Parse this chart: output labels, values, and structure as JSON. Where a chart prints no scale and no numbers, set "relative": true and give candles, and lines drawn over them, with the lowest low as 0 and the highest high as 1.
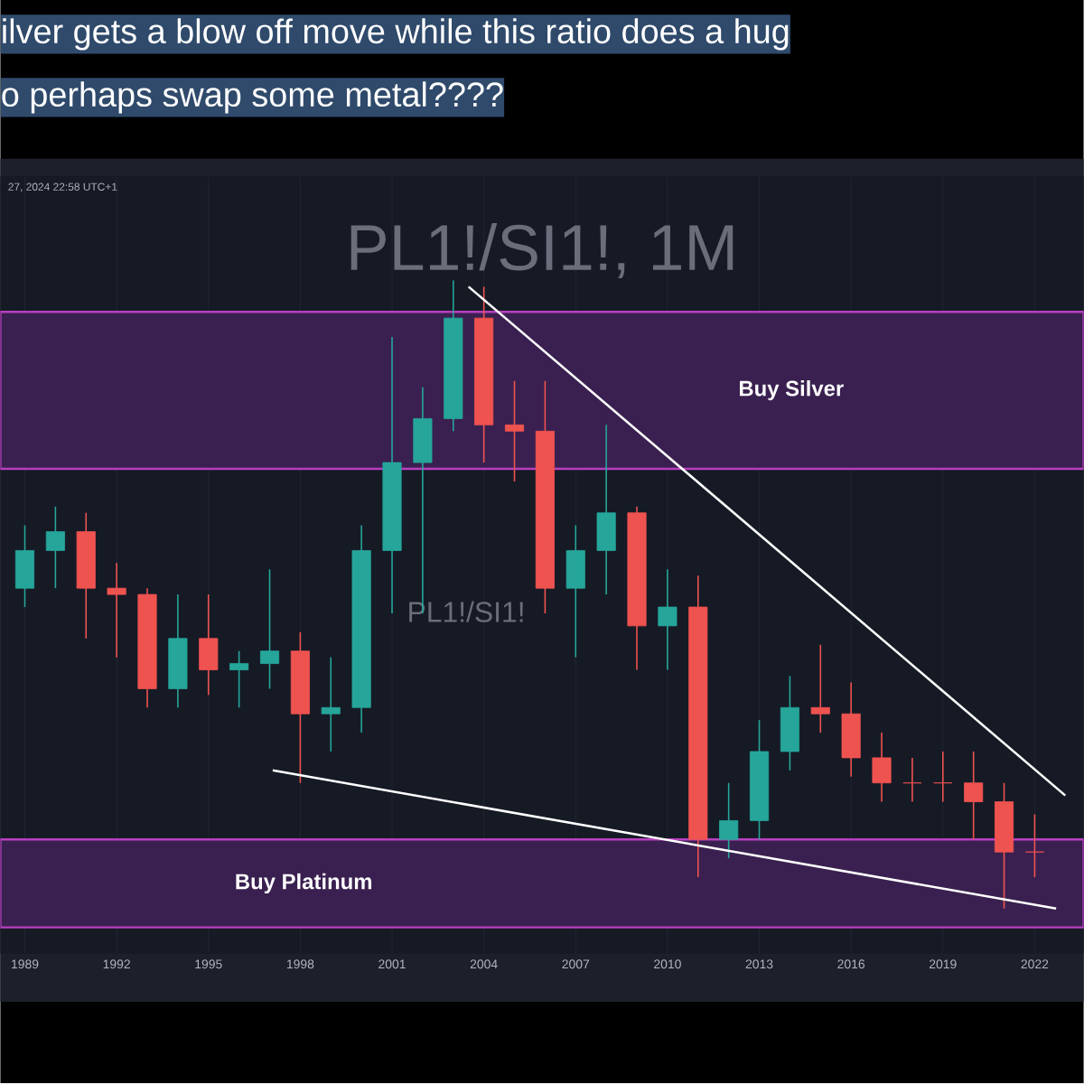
{
  "chart_data": {
    "type": "candlestick",
    "title": "ilver gets a blow off move while this ratio does a hug",
    "subtitle": "o perhaps swap some metal????",
    "annotations": [
      "27, 2024 22:58 UTC+1",
      "PL1!/SI1!, 1M",
      "PL1!/SI1!"
    ],
    "relative": true,
    "x": [
      1989,
      1990,
      1991,
      1992,
      1993,
      1994,
      1995,
      1996,
      1997,
      1998,
      1999,
      2000,
      2001,
      2002,
      2003,
      2004,
      2005,
      2006,
      2007,
      2008,
      2009,
      2010,
      2011,
      2012,
      2013,
      2014,
      2015,
      2016,
      2017,
      2018,
      2019,
      2020,
      2021,
      2022
    ],
    "ohlc": [
      [
        0.51,
        0.61,
        0.48,
        0.57
      ],
      [
        0.57,
        0.64,
        0.51,
        0.6
      ],
      [
        0.6,
        0.63,
        0.43,
        0.51
      ],
      [
        0.51,
        0.55,
        0.4,
        0.5
      ],
      [
        0.5,
        0.51,
        0.32,
        0.35
      ],
      [
        0.35,
        0.5,
        0.32,
        0.43
      ],
      [
        0.43,
        0.5,
        0.34,
        0.38
      ],
      [
        0.38,
        0.41,
        0.32,
        0.39
      ],
      [
        0.39,
        0.54,
        0.35,
        0.41
      ],
      [
        0.41,
        0.44,
        0.2,
        0.31
      ],
      [
        0.31,
        0.4,
        0.25,
        0.32
      ],
      [
        0.32,
        0.61,
        0.28,
        0.57
      ],
      [
        0.57,
        0.91,
        0.47,
        0.71
      ],
      [
        0.71,
        0.83,
        0.47,
        0.78
      ],
      [
        0.78,
        1.0,
        0.76,
        0.94
      ],
      [
        0.94,
        0.99,
        0.71,
        0.77
      ],
      [
        0.77,
        0.84,
        0.68,
        0.76
      ],
      [
        0.76,
        0.84,
        0.47,
        0.51
      ],
      [
        0.51,
        0.61,
        0.4,
        0.57
      ],
      [
        0.57,
        0.77,
        0.5,
        0.63
      ],
      [
        0.63,
        0.64,
        0.38,
        0.45
      ],
      [
        0.45,
        0.54,
        0.38,
        0.48
      ],
      [
        0.48,
        0.53,
        0.05,
        0.11
      ],
      [
        0.11,
        0.2,
        0.08,
        0.14
      ],
      [
        0.14,
        0.3,
        0.11,
        0.25
      ],
      [
        0.25,
        0.37,
        0.22,
        0.32
      ],
      [
        0.32,
        0.42,
        0.28,
        0.31
      ],
      [
        0.31,
        0.36,
        0.21,
        0.24
      ],
      [
        0.24,
        0.28,
        0.17,
        0.2
      ],
      [
        0.2,
        0.24,
        0.17,
        0.2
      ],
      [
        0.2,
        0.25,
        0.17,
        0.2
      ],
      [
        0.2,
        0.25,
        0.11,
        0.17
      ],
      [
        0.17,
        0.2,
        0.0,
        0.09
      ],
      [
        0.09,
        0.15,
        0.05,
        0.09
      ]
    ],
    "colors": [
      "#26a69a",
      "#26a69a",
      "#ef5350",
      "#ef5350",
      "#ef5350",
      "#26a69a",
      "#ef5350",
      "#26a69a",
      "#26a69a",
      "#ef5350",
      "#26a69a",
      "#26a69a",
      "#26a69a",
      "#26a69a",
      "#26a69a",
      "#ef5350",
      "#ef5350",
      "#ef5350",
      "#26a69a",
      "#26a69a",
      "#ef5350",
      "#26a69a",
      "#ef5350",
      "#26a69a",
      "#26a69a",
      "#26a69a",
      "#ef5350",
      "#ef5350",
      "#ef5350",
      "#ef5350",
      "#ef5350",
      "#ef5350",
      "#ef5350",
      "#ef5350"
    ],
    "series": [
      {
        "type": "line",
        "color": "#ffffff",
        "x": [
          2003.5,
          2023.0
        ],
        "values": [
          0.99,
          0.18
        ]
      },
      {
        "type": "line",
        "color": "#ffffff",
        "x": [
          1997.1,
          2022.7
        ],
        "values": [
          0.22,
          0.0
        ]
      }
    ],
    "bands": [
      {
        "axis": "y",
        "from": 0.7,
        "to": 0.95,
        "label": "Buy Silver",
        "color": "#3a2050"
      },
      {
        "axis": "y",
        "from": -0.03,
        "to": 0.11,
        "label": "Buy Platinum",
        "color": "#3a2050"
      }
    ],
    "xlim": [
      1988.2,
      2023.6
    ],
    "xticks": [
      1989,
      1992,
      1995,
      1998,
      2001,
      2004,
      2007,
      2010,
      2013,
      2016,
      2019,
      2022
    ],
    "grid": "x"
  }
}
